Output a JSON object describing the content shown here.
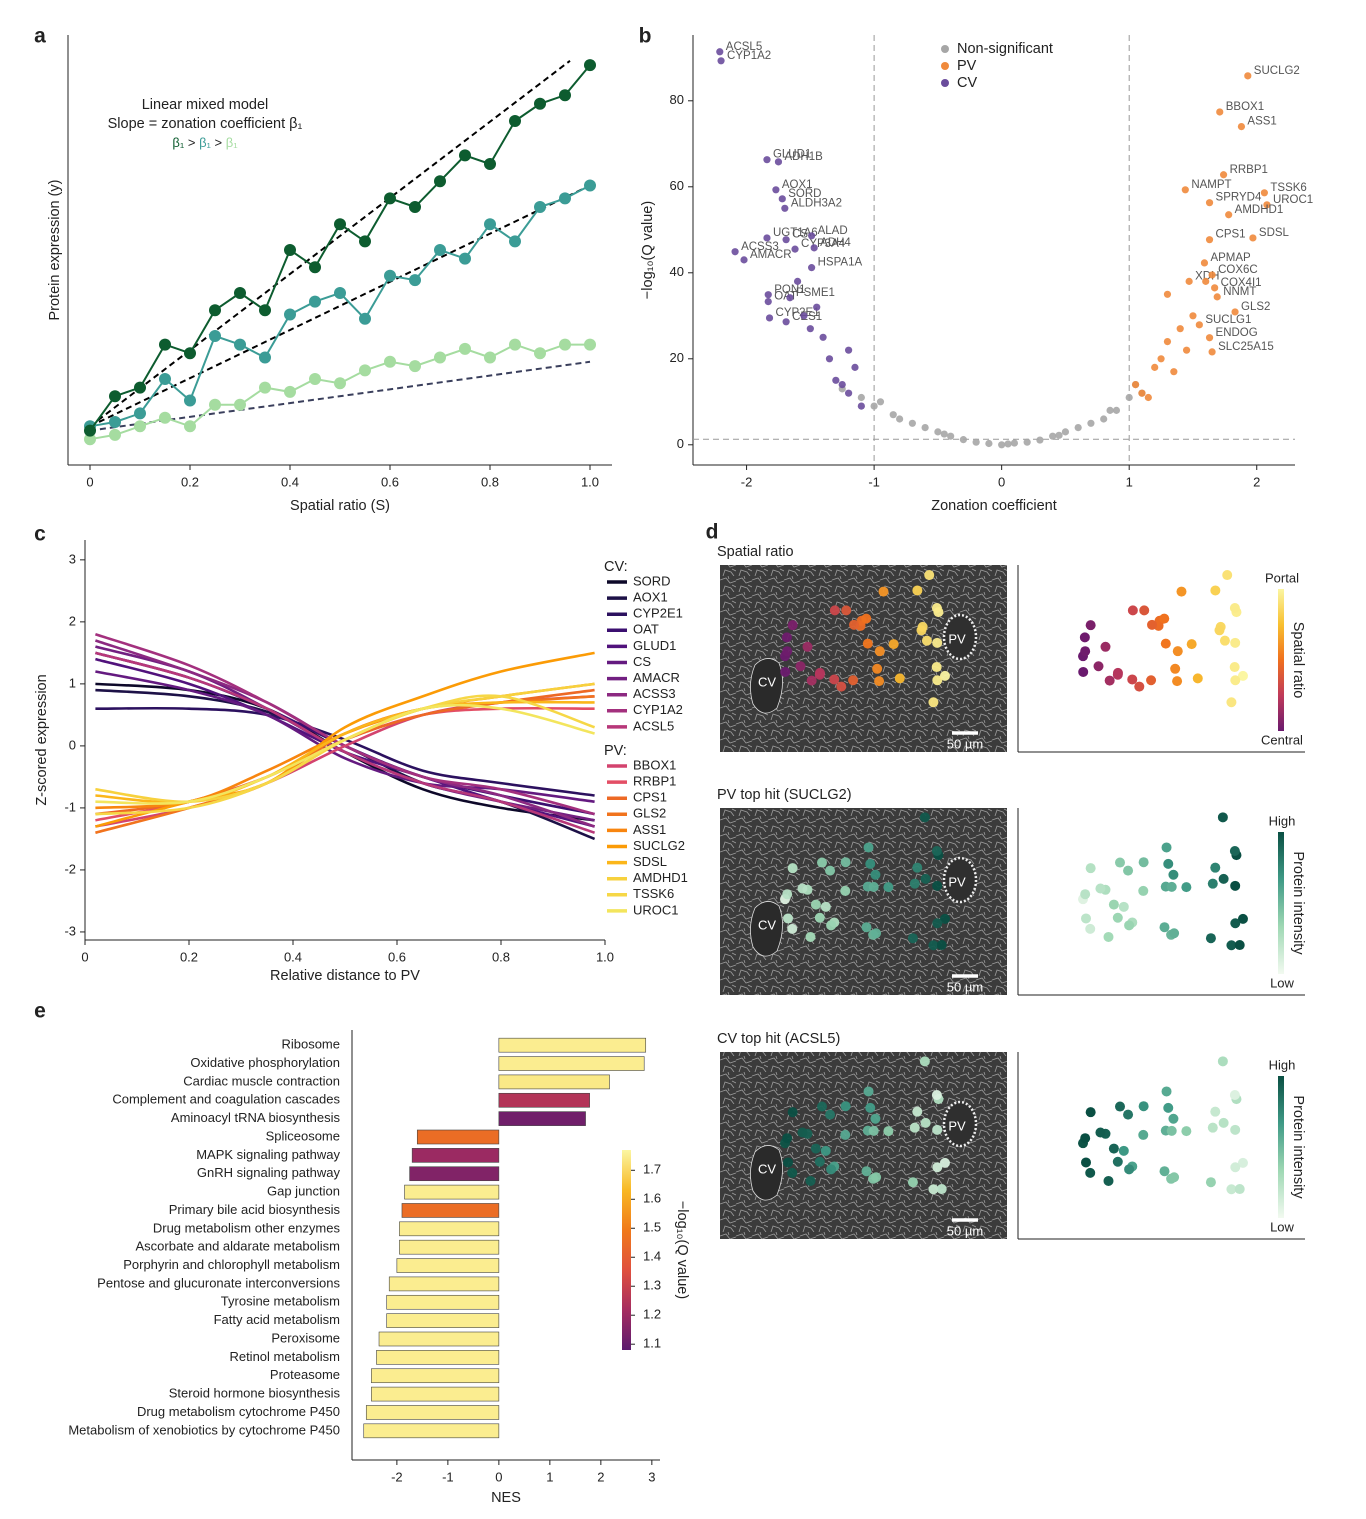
{
  "chart_data": [
    {
      "panel": "a",
      "type": "line",
      "annotation": [
        "Linear mixed model",
        "Slope = zonation coefficient β₁"
      ],
      "slope_comparison": [
        "β₁",
        ">",
        "β₁",
        ">",
        "β₁"
      ],
      "xlabel": "Spatial ratio (S)",
      "ylabel": "Protein expression (y)",
      "xlim": [
        -0.044,
        1.044
      ],
      "ylim": [
        0,
        100
      ],
      "xticks": [
        0,
        0.2,
        0.4,
        0.6,
        0.8,
        {
          "value": 1,
          "label": "1.0"
        }
      ],
      "x": [
        0,
        0.05,
        0.1,
        0.15,
        0.2,
        0.25,
        0.3,
        0.35,
        0.4,
        0.45,
        0.5,
        0.55,
        0.6,
        0.65,
        0.7,
        0.75,
        0.8,
        0.85,
        0.9,
        0.95,
        1
      ],
      "series": [
        {
          "color": "#0d5c2f",
          "values": [
            8,
            16,
            18,
            28,
            26,
            36,
            40,
            36,
            50,
            46,
            56,
            52,
            62,
            60,
            66,
            72,
            70,
            80,
            84,
            86,
            93
          ]
        },
        {
          "color": "#3b9c96",
          "values": [
            9,
            10,
            12,
            20,
            15,
            30,
            28,
            25,
            35,
            38,
            40,
            34,
            44,
            43,
            50,
            48,
            56,
            52,
            60,
            62,
            65
          ]
        },
        {
          "color": "#a5dca0",
          "values": [
            6,
            7,
            9,
            11,
            9,
            14,
            14,
            18,
            17,
            20,
            19,
            22,
            24,
            23,
            25,
            27,
            25,
            28,
            26,
            28,
            28
          ]
        }
      ],
      "fits": [
        {
          "color": "#000000",
          "x": [
            0,
            0.96
          ],
          "values": [
            9,
            94
          ]
        },
        {
          "color": "#000000",
          "x": [
            0,
            1
          ],
          "values": [
            9,
            65
          ]
        },
        {
          "color": "#3a3f5c",
          "x": [
            0,
            1
          ],
          "values": [
            8,
            24
          ]
        }
      ]
    },
    {
      "panel": "b",
      "type": "scatter",
      "xlabel": "Zonation coefficient",
      "ylabel": "−log₁₀(Q value)",
      "xlim": [
        -2.42,
        2.3
      ],
      "ylim": [
        -4.7,
        95.3
      ],
      "xticks": [
        -2,
        -1,
        0,
        1,
        2
      ],
      "yticks": [
        0,
        20,
        40,
        60,
        80
      ],
      "thresholds": {
        "x": [
          -1,
          1
        ],
        "y": [
          1.3
        ]
      },
      "series": [
        {
          "name": "Non-significant",
          "color": "#a6a6a6",
          "x": [
            -1.25,
            -1.1,
            -1.0,
            -0.95,
            -0.85,
            -0.8,
            -0.7,
            -0.6,
            -0.5,
            -0.45,
            -0.4,
            -0.3,
            -0.2,
            -0.1,
            0,
            0.05,
            0.1,
            0.2,
            0.3,
            0.4,
            0.45,
            0.5,
            0.6,
            0.7,
            0.8,
            0.85,
            0.9,
            1.0,
            1.05,
            1.1
          ],
          "values": [
            13,
            11,
            9,
            10,
            7,
            6,
            5,
            4,
            3,
            2.5,
            2,
            1.2,
            0.6,
            0.3,
            0,
            0.2,
            0.4,
            0.6,
            1.1,
            2,
            2.2,
            3,
            4,
            5,
            6,
            8,
            8,
            11,
            14,
            12
          ]
        },
        {
          "name": "PV",
          "color": "#f08a3c",
          "x": [
            1.93,
            1.71,
            1.88,
            1.74,
            1.44,
            2.06,
            1.63,
            2.08,
            1.78,
            1.63,
            1.97,
            1.59,
            1.47,
            1.65,
            1.67,
            1.69,
            1.83,
            1.55,
            1.63,
            1.65,
            1.05,
            1.1,
            1.2,
            1.25,
            1.3,
            1.35,
            1.4,
            1.15,
            1.5,
            1.45,
            1.3,
            1.6
          ],
          "values": [
            85.8,
            77.4,
            74.0,
            62.8,
            59.3,
            58.6,
            56.3,
            55.8,
            53.5,
            47.7,
            48.1,
            42.3,
            38,
            39.5,
            36.5,
            34.4,
            30.9,
            27.9,
            24.9,
            21.6,
            14,
            12,
            18,
            20,
            24,
            17,
            27,
            11,
            30,
            22,
            35,
            38
          ],
          "labels": [
            "SUCLG2",
            "BBOX1",
            "ASS1",
            "RRBP1",
            "NAMPT",
            "TSSK6",
            "SPRYD4",
            "UROC1",
            "AMDHD1",
            "CPS1",
            "SDSL",
            "APMAP",
            "XDH",
            "COX6C",
            "COX4I1",
            "NNMT",
            "GLS2",
            "SUCLG1",
            "ENDOG",
            "SLC25A15",
            null,
            null,
            null,
            null,
            null,
            null,
            null,
            null,
            null,
            null,
            null,
            null
          ]
        },
        {
          "name": "CV",
          "color": "#6a4c9c",
          "x": [
            -2.21,
            -2.2,
            -1.84,
            -1.75,
            -1.77,
            -1.72,
            -1.7,
            -1.84,
            -1.69,
            -2.09,
            -1.62,
            -2.02,
            -1.49,
            -1.47,
            -1.49,
            -1.83,
            -1.83,
            -1.66,
            -1.82,
            -1.69,
            -1.3,
            -1.2,
            -1.15,
            -1.1,
            -1.4,
            -1.5,
            -1.35,
            -1.45,
            -1.25,
            -1.2,
            -1.55,
            -1.6
          ],
          "values": [
            91.4,
            89.3,
            66.3,
            65.8,
            59.3,
            57.2,
            55.0,
            48.1,
            47.7,
            44.9,
            45.5,
            43.0,
            48.6,
            45.8,
            41.2,
            34.9,
            33.3,
            34.2,
            29.5,
            28.6,
            15,
            12,
            18,
            9,
            25,
            27,
            20,
            32,
            14,
            22,
            30,
            38
          ],
          "labels": [
            "ACSL5",
            "CYP1A2",
            "GLUD1",
            "ADH1B",
            "AOX1",
            "SORD",
            "ALDH3A2",
            "UGT1A6",
            "CS",
            "ACSS3",
            "CYP3A4",
            "AMACR",
            "ALAD",
            "ADH4",
            "HSPA1A",
            "PON1",
            "OAT",
            "PSME1",
            "CYP2E1",
            "CES1",
            null,
            null,
            null,
            null,
            null,
            null,
            null,
            null,
            null,
            null,
            null,
            null
          ]
        }
      ]
    },
    {
      "panel": "c",
      "type": "line",
      "xlabel": "Relative distance to PV",
      "ylabel": "Z-scored expression",
      "xlim": [
        0,
        1
      ],
      "ylim": [
        -3.13,
        3.32
      ],
      "xticks": [
        0,
        0.2,
        0.4,
        0.6,
        0.8,
        {
          "value": 1,
          "label": "1.0"
        }
      ],
      "yticks": [
        -3,
        -2,
        -1,
        0,
        1,
        2,
        3
      ],
      "x": [
        0.02,
        0.2,
        0.35,
        0.5,
        0.65,
        0.8,
        0.98
      ],
      "groups": [
        {
          "name": "CV:",
          "series": [
            {
              "name": "SORD",
              "color": "#0d0829",
              "values": [
                1.0,
                0.9,
                0.6,
                -0.1,
                -0.7,
                -1.0,
                -1.2
              ]
            },
            {
              "name": "AOX1",
              "color": "#1d1147",
              "values": [
                0.9,
                0.8,
                0.55,
                0,
                -0.6,
                -0.9,
                -1.5
              ]
            },
            {
              "name": "CYP2E1",
              "color": "#2c115f",
              "values": [
                0.6,
                0.6,
                0.5,
                0.1,
                -0.4,
                -0.6,
                -0.8
              ]
            },
            {
              "name": "OAT",
              "color": "#3b0f70",
              "values": [
                1.5,
                1.1,
                0.6,
                0,
                -0.5,
                -0.8,
                -1.1
              ]
            },
            {
              "name": "GLUD1",
              "color": "#51127c",
              "values": [
                1.4,
                1.0,
                0.5,
                -0.1,
                -0.5,
                -0.9,
                -1.3
              ]
            },
            {
              "name": "CS",
              "color": "#641a80",
              "values": [
                1.2,
                0.9,
                0.5,
                -0.2,
                -0.6,
                -0.7,
                -0.9
              ]
            },
            {
              "name": "AMACR",
              "color": "#721f81",
              "values": [
                1.6,
                1.2,
                0.6,
                -0.1,
                -0.6,
                -0.9,
                -1.2
              ]
            },
            {
              "name": "ACSS3",
              "color": "#8c2981",
              "values": [
                1.7,
                1.2,
                0.7,
                0,
                -0.5,
                -0.8,
                -1.3
              ]
            },
            {
              "name": "CYP1A2",
              "color": "#a3307e",
              "values": [
                1.8,
                1.3,
                0.7,
                0,
                -0.5,
                -0.7,
                -1.1
              ]
            },
            {
              "name": "ACSL5",
              "color": "#b73779",
              "values": [
                1.5,
                1.1,
                0.6,
                -0.1,
                -0.6,
                -0.9,
                -1.4
              ]
            }
          ]
        },
        {
          "name": "PV:",
          "series": [
            {
              "name": "BBOX1",
              "color": "#d3436e",
              "values": [
                -1.3,
                -1.0,
                -0.6,
                0,
                0.5,
                0.7,
                0.8
              ]
            },
            {
              "name": "RRBP1",
              "color": "#e34e65",
              "values": [
                -1.2,
                -0.9,
                -0.5,
                0.1,
                0.5,
                0.6,
                0.6
              ]
            },
            {
              "name": "CPS1",
              "color": "#ed6925",
              "values": [
                -1.1,
                -0.9,
                -0.5,
                0.1,
                0.5,
                0.7,
                0.9
              ]
            },
            {
              "name": "GLS2",
              "color": "#f1731d",
              "values": [
                -1.4,
                -1.0,
                -0.6,
                0.2,
                0.6,
                0.7,
                0.8
              ]
            },
            {
              "name": "ASS1",
              "color": "#f8850f",
              "values": [
                -1.0,
                -0.9,
                -0.4,
                0.2,
                0.6,
                0.8,
                1.0
              ]
            },
            {
              "name": "SUCLG2",
              "color": "#fb9b06",
              "values": [
                -1.3,
                -0.9,
                -0.6,
                0.3,
                0.8,
                1.2,
                1.5
              ]
            },
            {
              "name": "SDSL",
              "color": "#fbb61a",
              "values": [
                -0.8,
                -0.9,
                -0.5,
                0.2,
                0.6,
                0.7,
                0.7
              ]
            },
            {
              "name": "AMDHD1",
              "color": "#f7d13d",
              "values": [
                -0.7,
                -0.9,
                -0.6,
                0.1,
                0.6,
                0.8,
                1.0
              ]
            },
            {
              "name": "TSSK6",
              "color": "#f6d746",
              "values": [
                -1.1,
                -1.0,
                -0.6,
                0.1,
                0.6,
                0.8,
                0.3
              ]
            },
            {
              "name": "UROC1",
              "color": "#f3e55d",
              "values": [
                -0.9,
                -0.9,
                -0.5,
                0.1,
                0.6,
                0.6,
                0.2
              ]
            }
          ]
        }
      ]
    },
    {
      "panel": "e",
      "type": "bar",
      "orientation": "horizontal",
      "xlabel": "NES",
      "xlim": [
        -2.88,
        3.16
      ],
      "xticks": [
        -2,
        -1,
        0,
        1,
        2,
        3
      ],
      "categories": [
        "Ribosome",
        "Oxidative phosphorylation",
        "Cardiac muscle contraction",
        "Complement and coagulation cascades",
        "Aminoacyl tRNA biosynthesis",
        "Spliceosome",
        "MAPK signaling pathway",
        "GnRH signaling pathway",
        "Gap junction",
        "Primary bile acid biosynthesis",
        "Drug metabolism other enzymes",
        "Ascorbate and aldarate metabolism",
        "Porphyrin and chlorophyll metabolism",
        "Pentose and glucuronate interconversions",
        "Tyrosine metabolism",
        "Fatty acid metabolism",
        "Peroxisome",
        "Retinol metabolism",
        "Proteasome",
        "Steroid hormone biosynthesis",
        "Drug metabolism cytochrome P450",
        "Metabolism of xenobiotics by cytochrome P450"
      ],
      "values": [
        2.88,
        2.85,
        2.17,
        1.78,
        1.7,
        -1.6,
        -1.7,
        -1.75,
        -1.85,
        -1.9,
        -1.95,
        -1.95,
        -2.0,
        -2.15,
        -2.2,
        -2.2,
        -2.35,
        -2.4,
        -2.5,
        -2.5,
        -2.6,
        -2.65
      ],
      "color_values": [
        1.75,
        1.75,
        1.74,
        1.25,
        1.12,
        1.45,
        1.2,
        1.15,
        1.75,
        1.45,
        1.75,
        1.75,
        1.75,
        1.75,
        1.75,
        1.75,
        1.75,
        1.75,
        1.75,
        1.75,
        1.75,
        1.75
      ],
      "colorbar": {
        "label": "−log₁₀(Q value)",
        "lim": [
          1.08,
          1.77
        ],
        "ticks": [
          1.1,
          1.2,
          1.3,
          1.4,
          1.5,
          1.6,
          1.7
        ],
        "colormap": [
          "#5b1a6e",
          "#a52c60",
          "#e0503e",
          "#f07a1a",
          "#f8b824",
          "#fbf6a2"
        ]
      }
    }
  ],
  "panel_d": {
    "panel": "d",
    "image_labels": [
      "CV",
      "PV"
    ],
    "scale_bar": "50 µm",
    "rows": [
      {
        "title": "Spatial ratio",
        "colorbar_label": "Spatial ratio",
        "high": "Portal",
        "low": "Central",
        "colormap": [
          "#6a1a6e",
          "#c03a5a",
          "#f0701e",
          "#f8c030",
          "#fbf6a2"
        ]
      },
      {
        "title": "PV top hit (SUCLG2)",
        "colorbar_label": "Protein intensity",
        "high": "High",
        "low": "Low",
        "colormap": [
          "#f2faf0",
          "#9fd8b4",
          "#3f9a86",
          "#0a4f43"
        ]
      },
      {
        "title": "CV top hit (ACSL5)",
        "colorbar_label": "Protein intensity",
        "high": "High",
        "low": "Low",
        "colormap": [
          "#f2faf0",
          "#9fd8b4",
          "#3f9a86",
          "#0a4f43"
        ]
      }
    ]
  }
}
